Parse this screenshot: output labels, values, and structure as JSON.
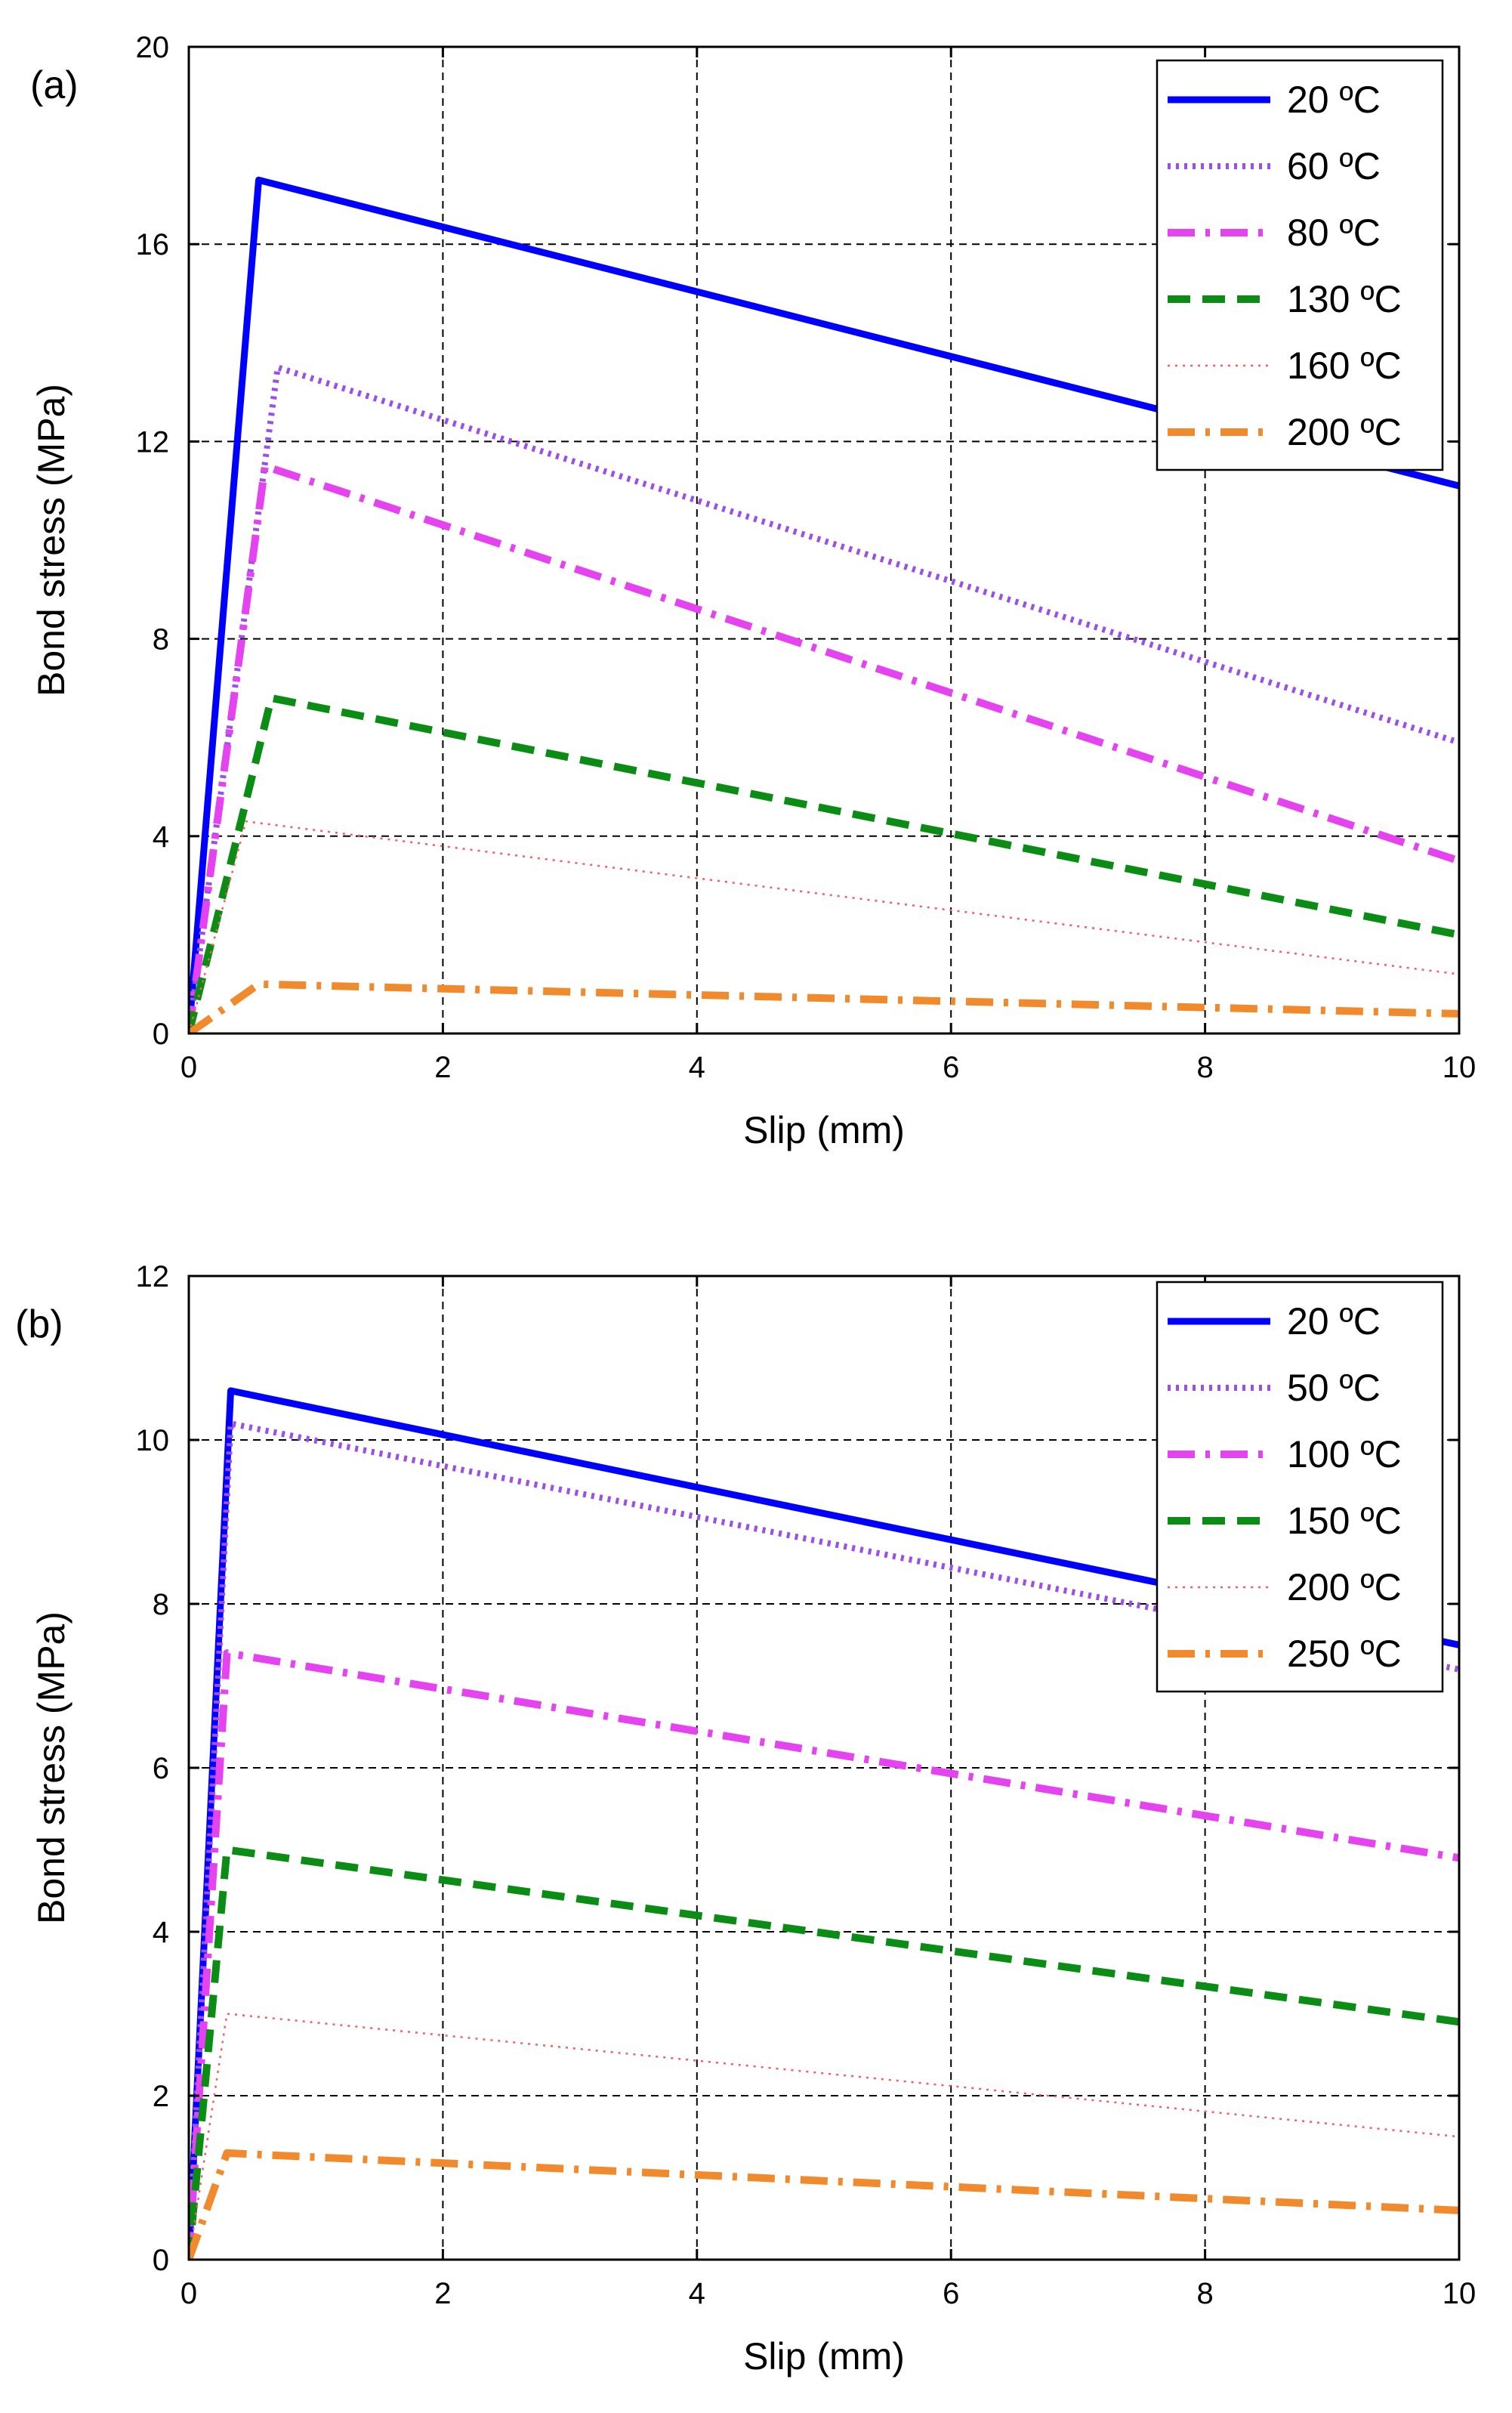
{
  "chart_data": [
    {
      "type": "line",
      "panel_label": "(a)",
      "xlabel": "Slip (mm)",
      "ylabel": "Bond stress (MPa)",
      "xlim": [
        0,
        10
      ],
      "ylim": [
        0,
        20
      ],
      "xticks": [
        0,
        2,
        4,
        6,
        8,
        10
      ],
      "yticks": [
        0,
        4,
        8,
        12,
        16,
        20
      ],
      "xtick_labels": [
        "0",
        "2",
        "4",
        "6",
        "8",
        "10"
      ],
      "ytick_labels": [
        "0",
        "4",
        "8",
        "12",
        "16",
        "20"
      ],
      "grid": true,
      "legend_position": "top-right",
      "series": [
        {
          "name": "20 ºC",
          "color": "#0000ff",
          "dash": "solid",
          "x": [
            0,
            0.55,
            10
          ],
          "y": [
            0,
            17.3,
            11.1
          ]
        },
        {
          "name": "60 ºC",
          "color": "#9b4ee8",
          "dash": "dot",
          "x": [
            0,
            0.7,
            10
          ],
          "y": [
            0,
            13.5,
            5.9
          ]
        },
        {
          "name": "80 ºC",
          "color": "#e542f0",
          "dash": "dashdot",
          "x": [
            0,
            0.6,
            10
          ],
          "y": [
            0,
            11.5,
            3.5
          ]
        },
        {
          "name": "130 ºC",
          "color": "#0b8c14",
          "dash": "dash",
          "x": [
            0,
            0.65,
            10
          ],
          "y": [
            0,
            6.8,
            2.0
          ]
        },
        {
          "name": "160 ºC",
          "color": "#f06060",
          "dash": "finedot",
          "x": [
            0,
            0.45,
            10
          ],
          "y": [
            0,
            4.3,
            1.2
          ]
        },
        {
          "name": "200 ºC",
          "color": "#f08a2c",
          "dash": "dashdot",
          "x": [
            0,
            0.55,
            10
          ],
          "y": [
            0,
            1.0,
            0.4
          ]
        }
      ]
    },
    {
      "type": "line",
      "panel_label": "(b)",
      "xlabel": "Slip (mm)",
      "ylabel": "Bond stress (MPa)",
      "xlim": [
        0,
        10
      ],
      "ylim": [
        0,
        12
      ],
      "xticks": [
        0,
        2,
        4,
        6,
        8,
        10
      ],
      "yticks": [
        0,
        2,
        4,
        6,
        8,
        10,
        12
      ],
      "xtick_labels": [
        "0",
        "2",
        "4",
        "6",
        "8",
        "10"
      ],
      "ytick_labels": [
        "0",
        "2",
        "4",
        "6",
        "8",
        "10",
        "12"
      ],
      "grid": true,
      "legend_position": "top-right",
      "series": [
        {
          "name": "20 ºC",
          "color": "#0000ff",
          "dash": "solid",
          "x": [
            0,
            0.33,
            10
          ],
          "y": [
            0,
            10.6,
            7.5
          ]
        },
        {
          "name": "50 ºC",
          "color": "#9b4ee8",
          "dash": "dot",
          "x": [
            0,
            0.33,
            10
          ],
          "y": [
            0,
            10.2,
            7.2
          ]
        },
        {
          "name": "100 ºC",
          "color": "#e542f0",
          "dash": "dashdot",
          "x": [
            0,
            0.3,
            10
          ],
          "y": [
            0,
            7.4,
            4.9
          ]
        },
        {
          "name": "150 ºC",
          "color": "#0b8c14",
          "dash": "dash",
          "x": [
            0,
            0.3,
            10
          ],
          "y": [
            0,
            5.0,
            2.9
          ]
        },
        {
          "name": "200 ºC",
          "color": "#f06060",
          "dash": "finedot",
          "x": [
            0,
            0.3,
            10
          ],
          "y": [
            0,
            3.0,
            1.5
          ]
        },
        {
          "name": "250 ºC",
          "color": "#f08a2c",
          "dash": "dashdot",
          "x": [
            0,
            0.3,
            10
          ],
          "y": [
            0,
            1.3,
            0.6
          ]
        }
      ]
    }
  ]
}
